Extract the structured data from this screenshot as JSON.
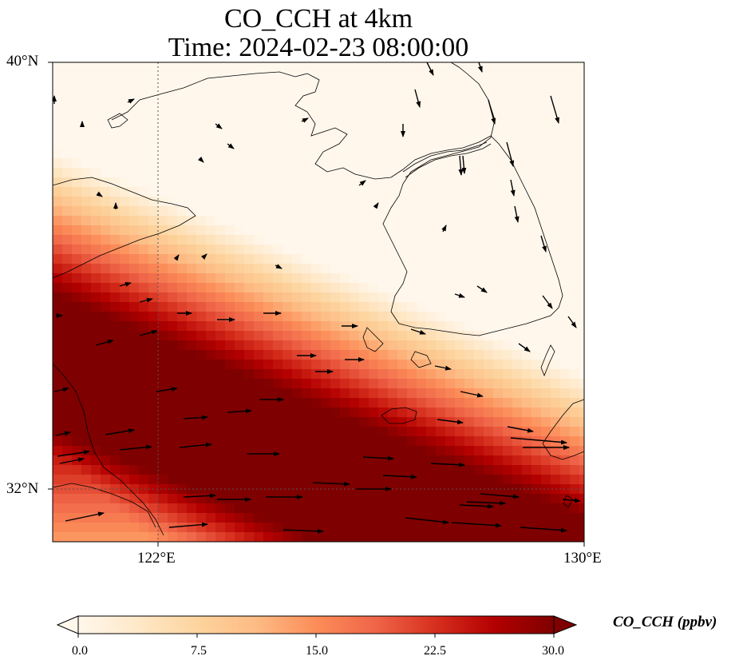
{
  "map": {
    "title_line1": "CO_CCH at 4km",
    "title_line2": "Time: 2024-02-23 08:00:00",
    "lat_labels": [
      "40°N",
      "32°N"
    ],
    "lon_labels": [
      "122°E",
      "130°E"
    ],
    "lon_range": [
      120,
      130
    ],
    "lat_range": [
      31,
      40
    ],
    "gridlines": "dotted",
    "coastlines": true
  },
  "colorbar": {
    "label": "CO_CCH (ppbv)",
    "ticks": [
      "0.0",
      "7.5",
      "15.0",
      "22.5",
      "30.0"
    ],
    "min": 0,
    "max": 30,
    "colormap": "OrRd",
    "extend": "both",
    "colors": [
      "#fff7ec",
      "#fee8c8",
      "#fdd49e",
      "#fdbb84",
      "#fc8d59",
      "#ef6548",
      "#d7301f",
      "#b30000",
      "#7f0000"
    ]
  },
  "field": {
    "description_values": "CO concentration bands: high band (~30 ppbv) runs diagonally from west to east-southeast; low (~0) over northeast.",
    "max_value": 30,
    "min_value": 0
  }
}
